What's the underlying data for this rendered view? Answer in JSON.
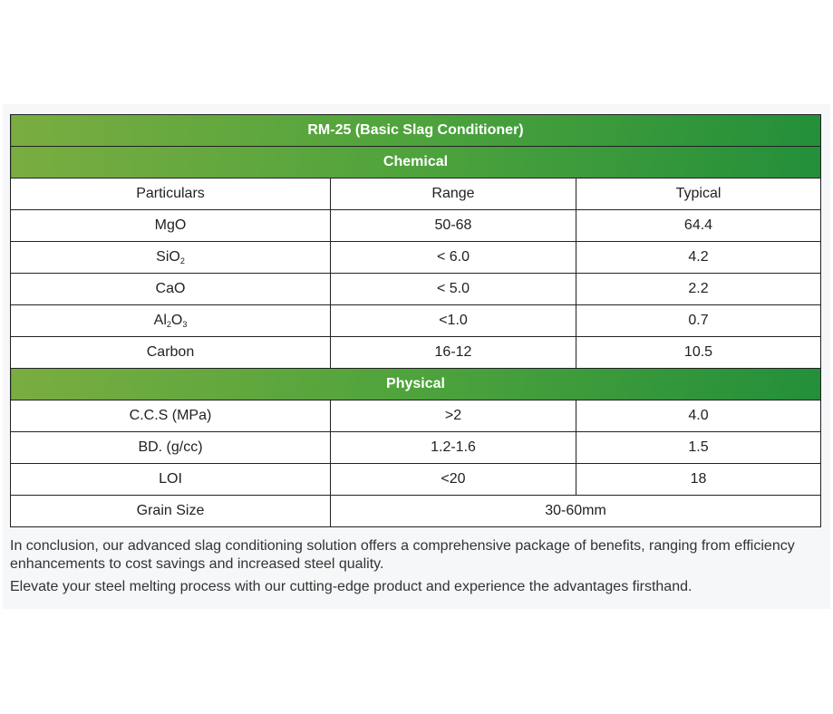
{
  "table": {
    "title": "RM-25 (Basic Slag Conditioner)",
    "section_chemical": "Chemical",
    "columns": [
      "Particulars",
      "Range",
      "Typical"
    ],
    "chemical_rows": [
      {
        "name": "MgO",
        "range": "50-68",
        "typical": "64.4"
      },
      {
        "name": "SiO",
        "sub": "2",
        "range": "< 6.0",
        "typical": "4.2"
      },
      {
        "name": "CaO",
        "range": "< 5.0",
        "typical": "2.2"
      },
      {
        "name": "Al",
        "sub": "2",
        "name2": "O",
        "sub2": "3",
        "range": "<1.0",
        "typical": "0.7"
      },
      {
        "name": "Carbon",
        "range": "16-12",
        "typical": "10.5"
      }
    ],
    "section_physical": "Physical",
    "physical_rows": [
      {
        "name": "C.C.S (MPa)",
        "range": ">2",
        "typical": "4.0"
      },
      {
        "name": "BD. (g/cc)",
        "range": "1.2-1.6",
        "typical": "1.5"
      },
      {
        "name": "LOI",
        "range": "<20",
        "typical": "18"
      }
    ],
    "grain": {
      "name": "Grain Size",
      "value": "30-60mm"
    }
  },
  "paragraphs": [
    "In conclusion, our advanced slag conditioning solution offers a comprehensive package of benefits, ranging from efficiency enhancements to cost savings and increased steel quality.",
    "Elevate your steel melting process with our cutting-edge product and experience the advantages firsthand."
  ]
}
